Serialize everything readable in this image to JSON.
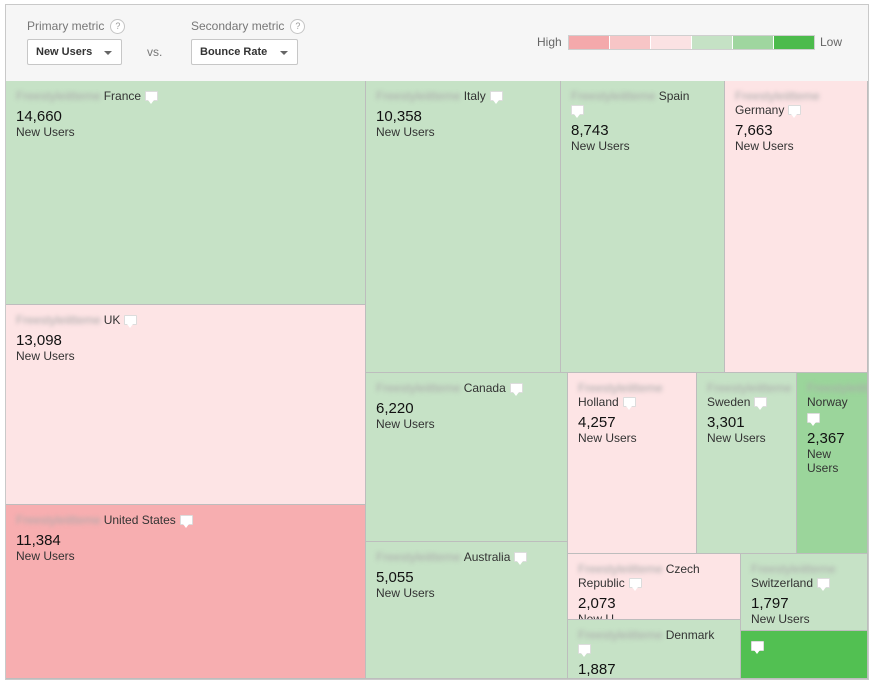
{
  "colors": {
    "legend_scale": [
      "#f4a9ab",
      "#f7c5c6",
      "#fbe2e3",
      "#c5e2c5",
      "#9fd69f",
      "#4cbb4c"
    ],
    "medium_high": "#f7aeb0",
    "light_high": "#fde4e5",
    "light_low": "#c6e2c6",
    "medium_low": "#9bd59b",
    "strong_low": "#52c052"
  },
  "controls": {
    "primary_label": "Primary metric",
    "primary_value": "New Users",
    "vs": "vs.",
    "secondary_label": "Secondary metric",
    "secondary_value": "Bounce Rate",
    "help_glyph": "?",
    "legend_high": "High",
    "legend_low": "Low"
  },
  "map": {
    "unit": "New Users",
    "blurred_prefix": "Freestyleiitteme",
    "cells": {
      "france": {
        "label": "France",
        "value": "14,660"
      },
      "uk": {
        "label": "UK",
        "value": "13,098"
      },
      "united_states": {
        "label": "United States",
        "value": "11,384"
      },
      "italy": {
        "label": "Italy",
        "value": "10,358"
      },
      "spain": {
        "label": "Spain",
        "value": "8,743"
      },
      "germany": {
        "label": "Germany",
        "value": "7,663"
      },
      "canada": {
        "label": "Canada",
        "value": "6,220"
      },
      "australia": {
        "label": "Australia",
        "value": "5,055"
      },
      "holland": {
        "label": "Holland",
        "value": "4,257"
      },
      "sweden": {
        "label": "Sweden",
        "value": "3,301"
      },
      "norway": {
        "label": "Norway",
        "value": "2,367",
        "unit_line1": "New",
        "unit_line2": "Users"
      },
      "czech": {
        "label": "Czech",
        "label_line2": "Republic",
        "value": "2,073",
        "unit_partial": "New U"
      },
      "switzerland": {
        "label": "Switzerland",
        "value": "1,797"
      },
      "denmark": {
        "label": "Denmark",
        "value": "1,887"
      }
    }
  }
}
